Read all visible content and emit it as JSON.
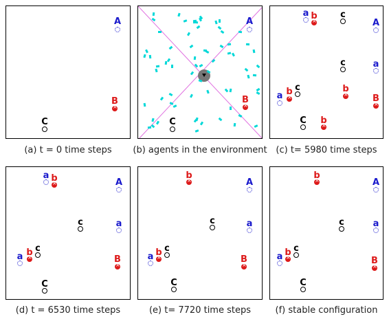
{
  "captions": {
    "a": "(a) t = 0 time steps",
    "b": "(b) agents in the environment",
    "c": "(c) t= 5980 time steps",
    "d": "(d) t = 6530 time steps",
    "e": "(e) t= 7720 time steps",
    "f": "(f) stable configuration"
  },
  "labels": {
    "A_upper": "A",
    "B_upper": "B",
    "C_lower": "C",
    "a_lower": "a",
    "b_lower": "b",
    "c_lower": "c"
  },
  "colors": {
    "blue": "#1a1acc",
    "red": "#dd1a1a",
    "black": "#000000",
    "agent": "#00d8d8",
    "diag": "#e070e0"
  }
}
